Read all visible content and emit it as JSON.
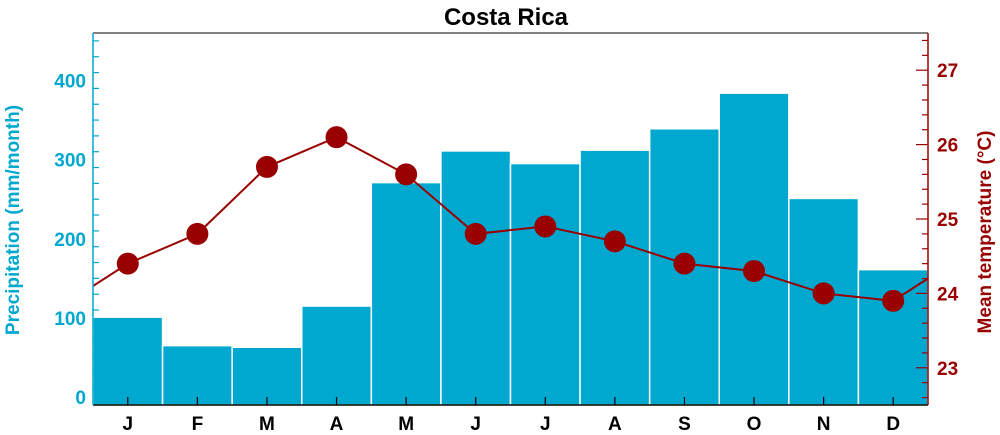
{
  "chart_data": {
    "type": "bar",
    "title": "Costa Rica",
    "categories": [
      "J",
      "F",
      "M",
      "A",
      "M",
      "J",
      "J",
      "A",
      "S",
      "O",
      "N",
      "D"
    ],
    "series": [
      {
        "kind": "bar",
        "axis": "left",
        "color": "#00A8D0",
        "values": [
          101,
          65,
          63,
          115,
          271,
          311,
          295,
          312,
          339,
          384,
          251,
          161
        ]
      },
      {
        "kind": "line",
        "axis": "right",
        "color": "#990000",
        "values": [
          24.4,
          24.8,
          25.7,
          26.1,
          25.6,
          24.8,
          24.9,
          24.7,
          24.4,
          24.3,
          24.0,
          23.9
        ],
        "start_value": 24.1,
        "end_value": 24.2
      }
    ],
    "y_left": {
      "label": "Precipitation (mm/month)",
      "ticks": [
        0,
        100,
        200,
        300,
        400
      ],
      "range": [
        -10,
        460
      ],
      "color": "#00A8D0"
    },
    "y_right": {
      "label": "Mean temperature (°C)",
      "ticks": [
        23,
        24,
        25,
        26,
        27
      ],
      "range": [
        22.5,
        27.5
      ],
      "color": "#990000"
    },
    "grid": false,
    "legend": "none"
  }
}
